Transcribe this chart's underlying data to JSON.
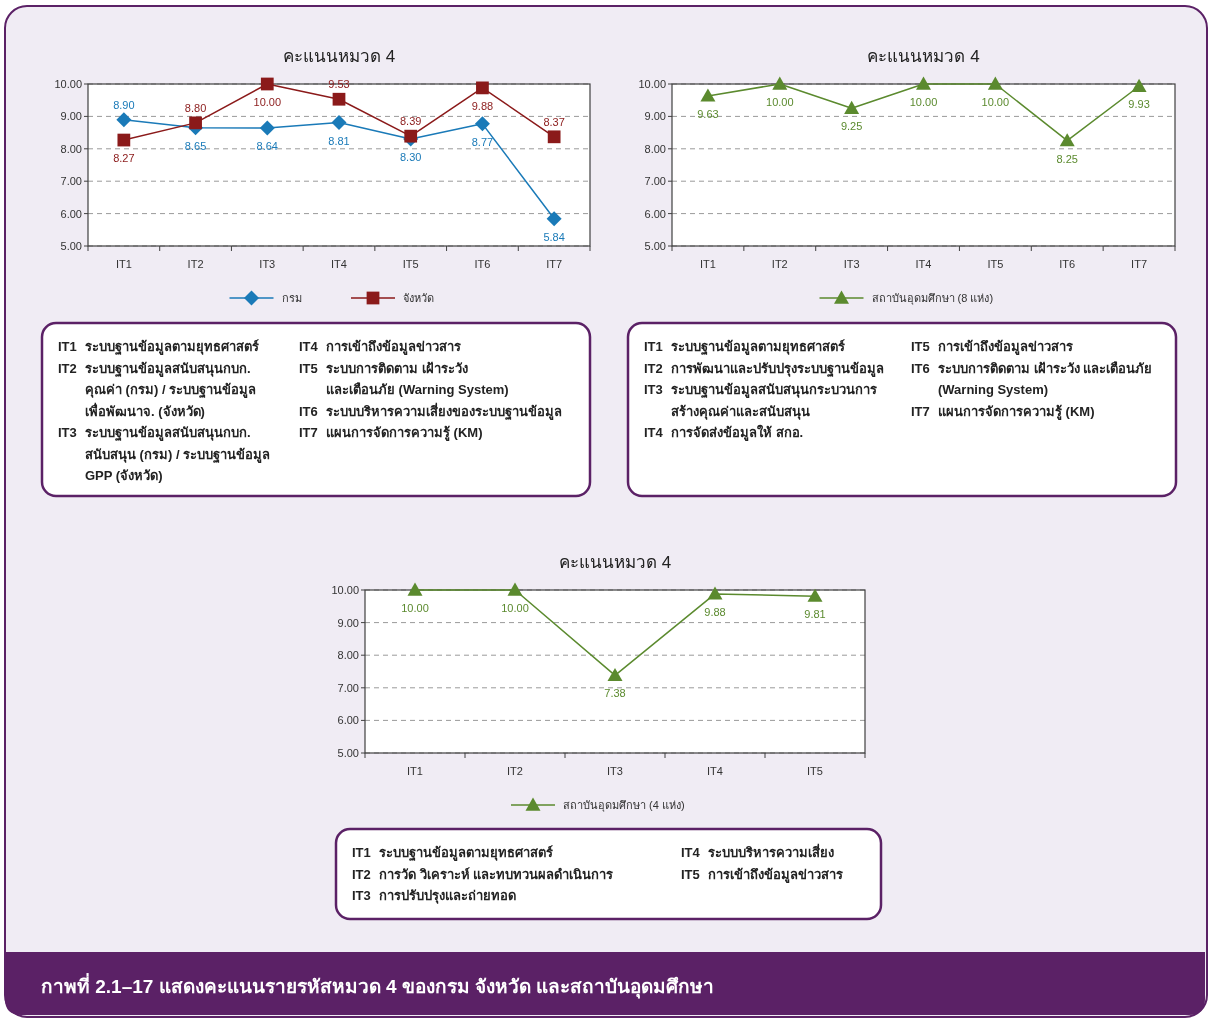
{
  "chart_data": [
    {
      "type": "line",
      "title": "คะแนนหมวด 4",
      "categories": [
        "IT1",
        "IT2",
        "IT3",
        "IT4",
        "IT5",
        "IT6",
        "IT7"
      ],
      "series": [
        {
          "name": "กรม",
          "color": "#1a7ab8",
          "marker": "diamond",
          "values": [
            8.9,
            8.65,
            8.64,
            8.81,
            8.3,
            8.77,
            5.84
          ],
          "value_labels": [
            "8.90",
            "8.65",
            "8.64",
            "8.81",
            "8.30",
            "8.77",
            "5.84"
          ]
        },
        {
          "name": "จังหวัด",
          "color": "#8b1a1a",
          "marker": "square",
          "values": [
            8.27,
            8.8,
            10.0,
            9.53,
            8.39,
            9.88,
            8.37
          ],
          "value_labels": [
            "8.27",
            "8.80",
            "10.00",
            "9.53",
            "8.39",
            "9.88",
            "8.37"
          ]
        }
      ],
      "ylim": [
        5,
        10
      ],
      "yticks": [
        {
          "value": 5,
          "label": "5.00"
        },
        {
          "value": 6,
          "label": "6.00"
        },
        {
          "value": 7,
          "label": "7.00"
        },
        {
          "value": 8,
          "label": "8.00"
        },
        {
          "value": 9,
          "label": "9.00"
        },
        {
          "value": 10,
          "label": "10.00"
        }
      ],
      "grid": "y",
      "legend": "bottom",
      "annotations": [
        "IT1 ระบบฐานข้อมูลตามยุทธศาสตร์",
        "IT2 ระบบฐานข้อมูลสนับสนุนกบก.\nคุณค่า (กรม) / ระบบฐานข้อมูล\nเพื่อพัฒนาจ. (จังหวัด)",
        "IT3 ระบบฐานข้อมูลสนับสนุนกบก.\nสนับสนุน (กรม) / ระบบฐานข้อมูล\nGPP (จังหวัด)",
        "IT4 การเข้าถึงข้อมูลข่าวสาร",
        "IT5 ระบบการติดตาม เฝ้าระวัง\nและเตือนภัย (Warning System)",
        "IT6 ระบบบริหารความเสี่ยงของระบบฐานข้อมูล",
        "IT7 แผนการจัดการความรู้ (KM)"
      ]
    },
    {
      "type": "line",
      "title": "คะแนนหมวด 4",
      "categories": [
        "IT1",
        "IT2",
        "IT3",
        "IT4",
        "IT5",
        "IT6",
        "IT7"
      ],
      "series": [
        {
          "name": "สถาบันอุดมศึกษา (8 แห่ง)",
          "color": "#5b8a2e",
          "marker": "triangle",
          "values": [
            9.63,
            10.0,
            9.25,
            10.0,
            10.0,
            8.25,
            9.93
          ],
          "value_labels": [
            "9.63",
            "10.00",
            "9.25",
            "10.00",
            "10.00",
            "8.25",
            "9.93"
          ]
        }
      ],
      "ylim": [
        5,
        10
      ],
      "yticks": [
        {
          "value": 5,
          "label": "5.00"
        },
        {
          "value": 6,
          "label": "6.00"
        },
        {
          "value": 7,
          "label": "7.00"
        },
        {
          "value": 8,
          "label": "8.00"
        },
        {
          "value": 9,
          "label": "9.00"
        },
        {
          "value": 10,
          "label": "10.00"
        }
      ],
      "grid": "y",
      "legend": "bottom",
      "annotations": [
        "IT1 ระบบฐานข้อมูลตามยุทธศาสตร์",
        "IT2 การพัฒนาและปรับปรุงระบบฐานข้อมูล",
        "IT3 ระบบฐานข้อมูลสนับสนุนกระบวนการ\nสร้างคุณค่าและสนับสนุน",
        "IT4 การจัดส่งข้อมูลให้ สกอ.",
        "IT5 การเข้าถึงข้อมูลข่าวสาร",
        "IT6 ระบบการติดตาม เฝ้าระวัง และเตือนภัย\n(Warning System)",
        "IT7 แผนการจัดการความรู้ (KM)"
      ]
    },
    {
      "type": "line",
      "title": "คะแนนหมวด 4",
      "categories": [
        "IT1",
        "IT2",
        "IT3",
        "IT4",
        "IT5"
      ],
      "series": [
        {
          "name": "สถาบันอุดมศึกษา (4 แห่ง)",
          "color": "#5b8a2e",
          "marker": "triangle",
          "values": [
            10.0,
            10.0,
            7.38,
            9.88,
            9.81
          ],
          "value_labels": [
            "10.00",
            "10.00",
            "7.38",
            "9.88",
            "9.81"
          ]
        }
      ],
      "ylim": [
        5,
        10
      ],
      "yticks": [
        {
          "value": 5,
          "label": "5.00"
        },
        {
          "value": 6,
          "label": "6.00"
        },
        {
          "value": 7,
          "label": "7.00"
        },
        {
          "value": 8,
          "label": "8.00"
        },
        {
          "value": 9,
          "label": "9.00"
        },
        {
          "value": 10,
          "label": "10.00"
        }
      ],
      "grid": "y",
      "legend": "bottom",
      "annotations": [
        "IT1 ระบบฐานข้อมูลตามยุทธศาสตร์",
        "IT2 การวัด วิเคราะห์ และทบทวนผลดำเนินการ",
        "IT3 การปรับปรุงและถ่ายทอด",
        "IT4 ระบบบริหารความเสี่ยง",
        "IT5 การเข้าถึงข้อมูลข่าวสาร"
      ]
    },
    {
      "type": "other",
      "annotations": [
        "กาพที่ 2.1–17  แสดงคะแนนรายรหัสหมวด 4 ของกรม จังหวัด และสถาบันอุดมศึกษา"
      ]
    }
  ]
}
